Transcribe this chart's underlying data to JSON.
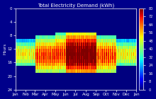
{
  "title": "Total Electricity Demand (kWh)",
  "xlabel_labels": [
    "Jan",
    "Feb",
    "Mar",
    "Apr",
    "May",
    "Jun",
    "Jul",
    "Aug",
    "Sep",
    "Oct",
    "Nov",
    "Dec",
    "Jan"
  ],
  "ylabel": "Hours",
  "cbar_ticks": [
    0,
    8,
    16,
    24,
    32,
    40,
    48,
    56,
    64,
    72,
    80
  ],
  "vmin": 0,
  "vmax": 80,
  "n_days": 365,
  "n_hours": 24,
  "background_color": "#00008B",
  "cmap": "jet",
  "yticks": [
    0,
    4,
    8,
    12,
    16,
    20,
    24
  ],
  "month_starts": [
    0,
    31,
    59,
    90,
    120,
    151,
    181,
    212,
    243,
    273,
    304,
    334,
    365
  ]
}
